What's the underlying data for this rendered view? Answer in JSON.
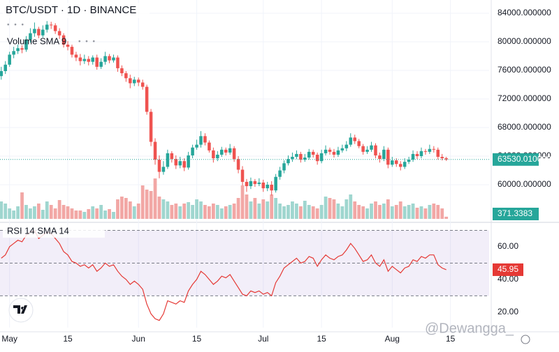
{
  "chart_data": {
    "type": "candlestick",
    "title": "BTC/USDT · 1D · BINANCE",
    "up_color": "#26a69a",
    "down_color": "#ef5350",
    "xlim": [
      -0.3,
      117.3
    ],
    "xticks": [
      {
        "value": 2,
        "label": "May"
      },
      {
        "value": 16,
        "label": "15"
      },
      {
        "value": 33,
        "label": "Jun"
      },
      {
        "value": 47,
        "label": "15"
      },
      {
        "value": 63,
        "label": "Jul"
      },
      {
        "value": 77,
        "label": "15"
      },
      {
        "value": 94,
        "label": "Aug"
      },
      {
        "value": 108,
        "label": "15"
      }
    ],
    "ylim": [
      54830,
      85850
    ],
    "yticks": [
      {
        "value": 84000,
        "label": "84000.000000"
      },
      {
        "value": 80000,
        "label": "80000.000000"
      },
      {
        "value": 76000,
        "label": "76000.000000"
      },
      {
        "value": 72000,
        "label": "72000.000000"
      },
      {
        "value": 68000,
        "label": "68000.000000"
      },
      {
        "value": 64000,
        "label": "64000.000000"
      },
      {
        "value": 60000,
        "label": "60000.000000"
      }
    ],
    "open": [
      75200,
      75900,
      76800,
      78200,
      78700,
      79100,
      78900,
      80300,
      81200,
      81800,
      80900,
      81700,
      82400,
      82300,
      81500,
      80900,
      79600,
      79300,
      78200,
      77800,
      77300,
      77600,
      77200,
      77800,
      76500,
      77200,
      78000,
      77400,
      77800,
      76300,
      75600,
      74900,
      74200,
      74700,
      74300,
      73700,
      70200,
      66000,
      63500,
      61800,
      62500,
      64400,
      63600,
      62700,
      63300,
      62400,
      64100,
      65200,
      65600,
      66800,
      65900,
      64800,
      63700,
      64200,
      64900,
      64500,
      65100,
      63600,
      62100,
      60400,
      59800,
      60500,
      60100,
      60300,
      59500,
      60000,
      59200,
      61100,
      62000,
      63000,
      63600,
      63900,
      64300,
      63500,
      63800,
      64600,
      64200,
      63300,
      64400,
      64900,
      64600,
      64200,
      64800,
      65100,
      65600,
      66600,
      66100,
      65400,
      64600,
      64900,
      65500,
      64100,
      63600,
      64900,
      62800,
      63400,
      62900,
      62500,
      63200,
      63500,
      64300,
      64000,
      64700,
      64600,
      65000,
      64900,
      63900,
      63700
    ],
    "high": [
      76500,
      77300,
      78600,
      79300,
      79600,
      79500,
      80800,
      81900,
      82700,
      82100,
      82300,
      82900,
      82800,
      82600,
      81900,
      81200,
      80100,
      79600,
      78600,
      78300,
      78200,
      78000,
      78100,
      78200,
      77700,
      78600,
      78300,
      78200,
      78100,
      76700,
      75900,
      75400,
      75100,
      75000,
      74700,
      74000,
      70600,
      66500,
      64100,
      63300,
      64900,
      64700,
      64100,
      63900,
      63700,
      64600,
      65600,
      66300,
      67500,
      67200,
      66200,
      65200,
      64700,
      65300,
      65200,
      65700,
      65400,
      64000,
      62600,
      60800,
      61000,
      60800,
      60900,
      60700,
      60400,
      60500,
      61500,
      62500,
      63400,
      64100,
      64500,
      64800,
      64600,
      64300,
      65000,
      64900,
      64500,
      64900,
      65500,
      65200,
      65000,
      65300,
      65600,
      66100,
      67200,
      67000,
      66400,
      65700,
      65400,
      66000,
      65800,
      64500,
      65400,
      65200,
      63900,
      63700,
      63300,
      63700,
      63900,
      64800,
      64700,
      65200,
      65000,
      65600,
      65400,
      65200,
      64300,
      63900
    ],
    "low": [
      74700,
      75500,
      76500,
      77700,
      78300,
      78400,
      78600,
      79900,
      80700,
      80500,
      80600,
      81300,
      81800,
      81100,
      80400,
      79200,
      78800,
      77800,
      77300,
      76700,
      76900,
      76700,
      76800,
      76100,
      76200,
      76800,
      77000,
      77100,
      75800,
      75200,
      74400,
      73500,
      73800,
      73800,
      73300,
      69800,
      65400,
      62800,
      60900,
      61400,
      62200,
      63100,
      62200,
      62300,
      61900,
      62100,
      63700,
      64900,
      65200,
      65500,
      64500,
      63100,
      63300,
      63900,
      64100,
      64200,
      63200,
      61600,
      59900,
      59000,
      59400,
      59700,
      59800,
      59000,
      59100,
      58500,
      58900,
      60700,
      61600,
      62700,
      63200,
      63600,
      63100,
      63200,
      63500,
      63800,
      62800,
      63000,
      64100,
      64200,
      63800,
      63900,
      64500,
      64700,
      65300,
      65700,
      65100,
      64200,
      64300,
      64600,
      63700,
      63100,
      63300,
      62300,
      62500,
      62500,
      62000,
      62200,
      62900,
      63200,
      63600,
      63700,
      64200,
      64300,
      64500,
      63500,
      63400,
      63330
    ],
    "close": [
      75900,
      76800,
      78200,
      78700,
      79100,
      78900,
      80300,
      81200,
      81800,
      80900,
      81700,
      82400,
      82300,
      81500,
      80900,
      79600,
      79300,
      78200,
      77800,
      77300,
      77600,
      77200,
      77800,
      76500,
      77200,
      78000,
      77400,
      77800,
      76300,
      75600,
      74900,
      74200,
      74700,
      74300,
      73700,
      70200,
      66000,
      63500,
      61800,
      62500,
      64400,
      63600,
      62700,
      63300,
      62400,
      64100,
      65200,
      65600,
      66800,
      65900,
      64800,
      63700,
      64200,
      64900,
      64500,
      65100,
      63600,
      62100,
      60400,
      59800,
      60500,
      60100,
      60300,
      59500,
      60000,
      59200,
      61100,
      62000,
      63000,
      63600,
      63900,
      64300,
      63500,
      63800,
      64600,
      64200,
      63300,
      64400,
      64900,
      64600,
      64200,
      64800,
      65100,
      65600,
      66600,
      66100,
      65400,
      64600,
      64900,
      65500,
      64100,
      63600,
      64900,
      62800,
      63400,
      62900,
      62500,
      63200,
      63500,
      64300,
      64000,
      64700,
      64600,
      65000,
      64900,
      63900,
      63700,
      63530.01
    ],
    "last_close_label": "63530.010000",
    "volume": {
      "title": "Volume SMA 9",
      "ylim": [
        0,
        15600
      ],
      "up_color": "#9fd6cf",
      "down_color": "#f2a7a5",
      "values": [
        3000,
        2640,
        1800,
        1440,
        2160,
        4560,
        2400,
        1800,
        2160,
        2640,
        1560,
        3000,
        2400,
        1800,
        3240,
        2400,
        2160,
        1800,
        1440,
        1440,
        1200,
        1680,
        2160,
        1800,
        2400,
        1440,
        1680,
        1200,
        3360,
        3840,
        3600,
        3000,
        2160,
        2640,
        5760,
        5040,
        4800,
        6960,
        3840,
        3360,
        3000,
        2400,
        2640,
        2160,
        2640,
        2880,
        2400,
        3360,
        3000,
        2400,
        2160,
        2640,
        2400,
        1800,
        2160,
        2400,
        2640,
        3600,
        5760,
        4200,
        3000,
        3600,
        2640,
        3360,
        3000,
        4200,
        3600,
        2640,
        2160,
        2400,
        3000,
        2640,
        2160,
        3120,
        2400,
        2160,
        1800,
        2400,
        3840,
        3600,
        3360,
        2640,
        2160,
        3360,
        4200,
        3000,
        2400,
        2160,
        1800,
        2640,
        3000,
        2400,
        2640,
        3360,
        2160,
        2400,
        3000,
        2160,
        2400,
        2640,
        1920,
        2160,
        1800,
        2400,
        2640,
        2400,
        1800,
        371.3383
      ]
    },
    "rsi": {
      "title": "RSI 14 SMA 14",
      "color": "#e53935",
      "ylim": [
        10.6,
        73.6
      ],
      "levels": [
        70,
        50,
        30
      ],
      "yticks": [
        {
          "value": 60,
          "label": "60.00"
        },
        {
          "value": 40,
          "label": "40.00"
        },
        {
          "value": 20,
          "label": "20.00"
        }
      ],
      "values": [
        53,
        55,
        60,
        62,
        64,
        63,
        67,
        69,
        70,
        65,
        67,
        69,
        68,
        65,
        62,
        57,
        55,
        51,
        50,
        48,
        49,
        47,
        49,
        45,
        47,
        50,
        48,
        49,
        45,
        42,
        40,
        37,
        39,
        37,
        34,
        25,
        19,
        16,
        15,
        19,
        27,
        26,
        25,
        27,
        26,
        33,
        37,
        40,
        45,
        43,
        40,
        37,
        39,
        42,
        41,
        43,
        39,
        35,
        31,
        30,
        33,
        32,
        33,
        31,
        32,
        30,
        38,
        42,
        47,
        49,
        51,
        53,
        50,
        51,
        54,
        53,
        48,
        52,
        55,
        53,
        52,
        54,
        55,
        58,
        62,
        59,
        55,
        51,
        52,
        55,
        50,
        48,
        52,
        45,
        48,
        46,
        44,
        47,
        48,
        52,
        51,
        54,
        53,
        55,
        55,
        49,
        47,
        45.95
      ]
    },
    "watermark": "@Dewangga_"
  }
}
